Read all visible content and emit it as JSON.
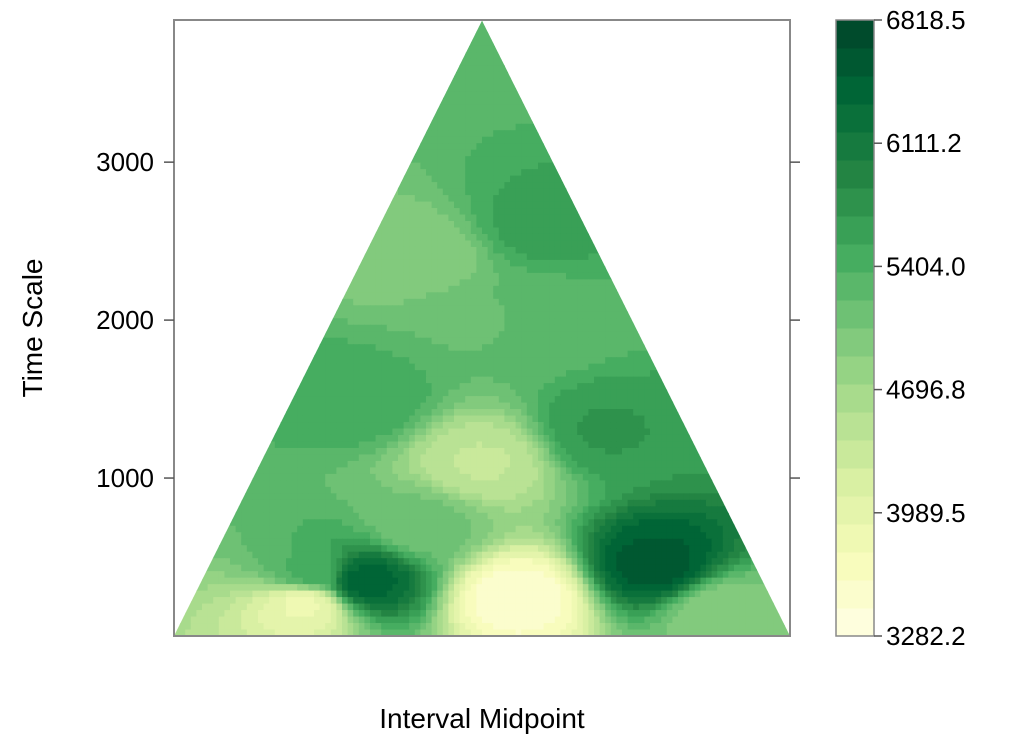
{
  "chart_data": {
    "type": "heatmap",
    "title": "",
    "xlabel": "Interval Midpoint",
    "ylabel": "Time Scale",
    "y_ticks": [
      1000,
      2000,
      3000
    ],
    "y_tick_labels": [
      "1000",
      "2000",
      "3000"
    ],
    "ylim": [
      0,
      3900
    ],
    "xlim": [
      0,
      1
    ],
    "colorbar": {
      "min": 3282.2,
      "max": 6818.5,
      "tick_values": [
        3282.2,
        3989.5,
        4696.8,
        5404.0,
        6111.2,
        6818.5
      ],
      "tick_labels": [
        "3282.2",
        "3989.5",
        "4696.8",
        "5404.0",
        "6111.2",
        "6818.5"
      ],
      "levels": 22,
      "colors": [
        "#ffffe5",
        "#f7fcb9",
        "#d9f0a3",
        "#addd8e",
        "#78c679",
        "#41ab5d",
        "#238443",
        "#006837",
        "#004529"
      ]
    },
    "grid": false,
    "field_description_points": [
      {
        "x": 0.5,
        "y": 3800,
        "value": 5300
      },
      {
        "x": 0.5,
        "y": 2000,
        "value": 5200
      },
      {
        "x": 0.4,
        "y": 2400,
        "value": 4900
      },
      {
        "x": 0.6,
        "y": 2600,
        "value": 5600
      },
      {
        "x": 0.3,
        "y": 1500,
        "value": 5500
      },
      {
        "x": 0.7,
        "y": 1300,
        "value": 5700
      },
      {
        "x": 0.22,
        "y": 400,
        "value": 5400
      },
      {
        "x": 0.21,
        "y": 200,
        "value": 3900
      },
      {
        "x": 0.31,
        "y": 350,
        "value": 6400
      },
      {
        "x": 0.56,
        "y": 250,
        "value": 3500
      },
      {
        "x": 0.5,
        "y": 1100,
        "value": 4400
      },
      {
        "x": 0.4,
        "y": 700,
        "value": 5100
      },
      {
        "x": 0.78,
        "y": 450,
        "value": 6550
      },
      {
        "x": 0.89,
        "y": 150,
        "value": 4900
      },
      {
        "x": 0.6,
        "y": 2000,
        "value": 5300
      }
    ]
  }
}
